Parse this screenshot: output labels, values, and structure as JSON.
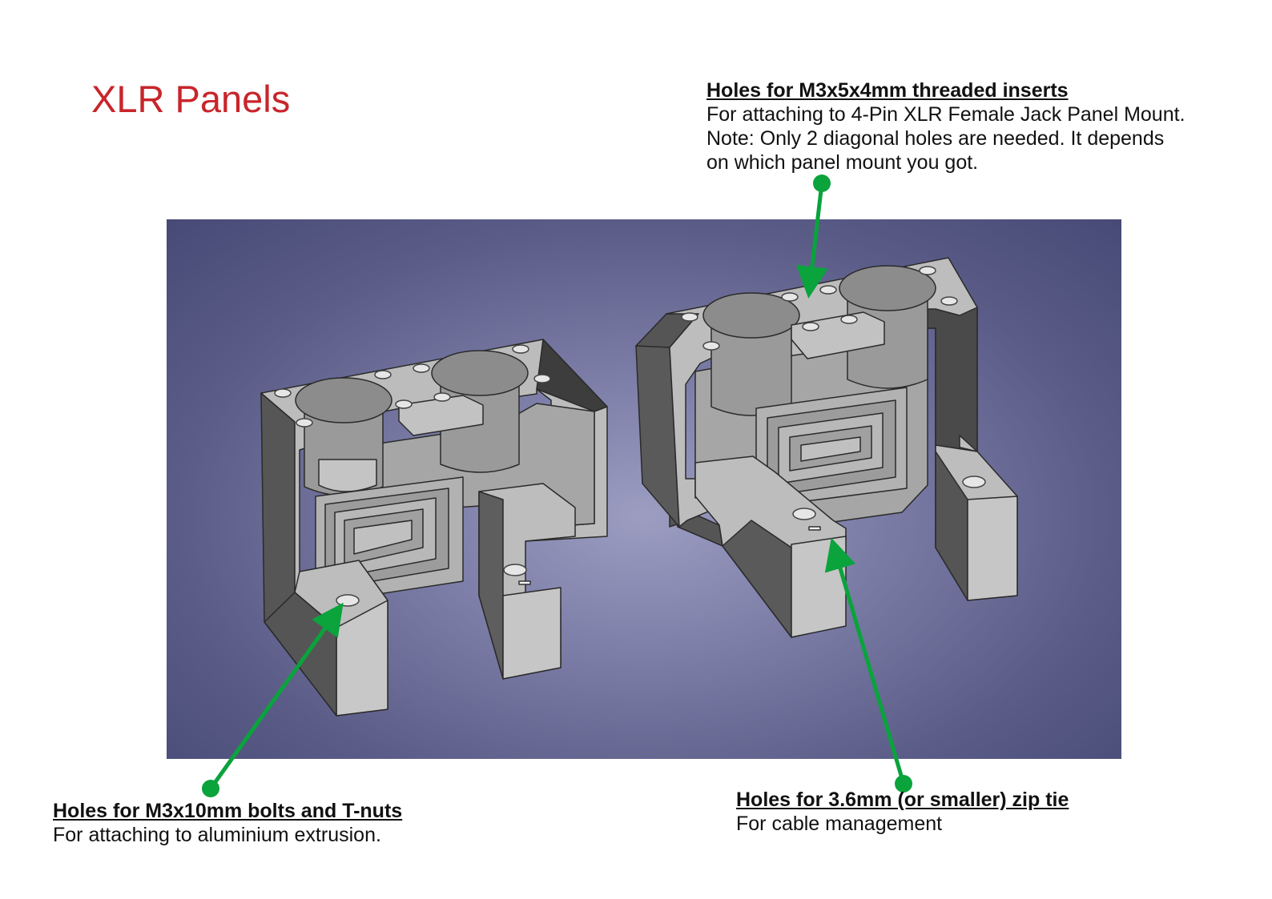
{
  "page": {
    "title": "XLR Panels"
  },
  "callouts": {
    "threaded_inserts": {
      "heading": "Holes for M3x5x4mm threaded inserts",
      "lines": [
        "For attaching to 4-Pin XLR Female Jack Panel Mount.",
        "Note: Only 2 diagonal holes are needed. It depends",
        "on which panel mount you got."
      ]
    },
    "bolts_tnuts": {
      "heading": "Holes for M3x10mm bolts and T-nuts",
      "lines": [
        "For attaching to aluminium extrusion."
      ]
    },
    "zip_tie": {
      "heading": "Holes for 3.6mm (or smaller) zip tie",
      "lines": [
        "For cable management"
      ]
    }
  },
  "colors": {
    "title": "#c8252b",
    "arrow": "#0aa33c",
    "part_face_light": "#bdbdbd",
    "part_face_dark": "#5e5e5e",
    "viewport_bg": "#5a5c87"
  }
}
